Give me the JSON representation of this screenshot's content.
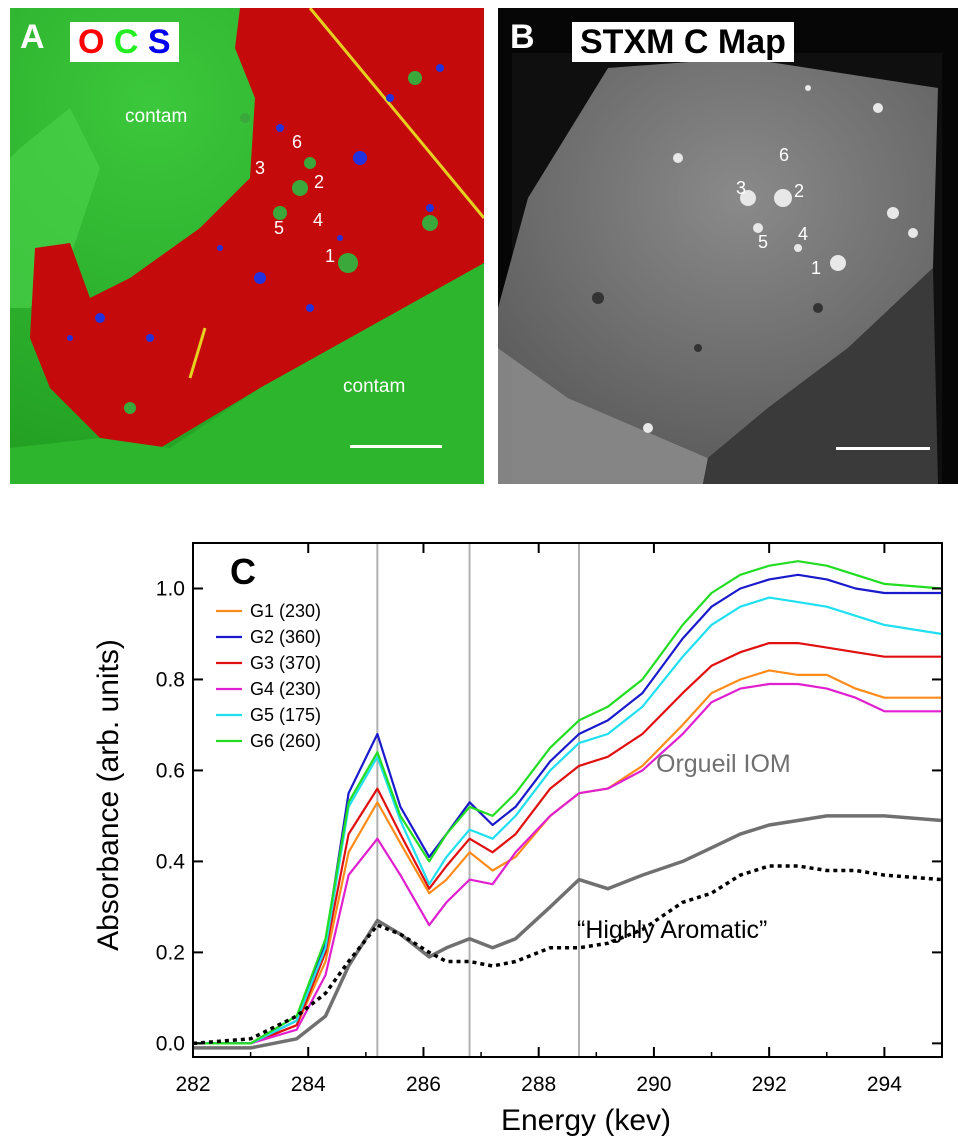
{
  "panel_a": {
    "letter": "A",
    "element_labels": [
      {
        "text": "O",
        "color": "#ff0000"
      },
      {
        "text": "C",
        "color": "#22ee22"
      },
      {
        "text": "S",
        "color": "#0000ee"
      }
    ],
    "region_labels": [
      "contam",
      "contam"
    ],
    "grain_labels": [
      "1",
      "2",
      "3",
      "4",
      "5",
      "6"
    ]
  },
  "panel_b": {
    "letter": "B",
    "title": "STXM C Map",
    "grain_labels": [
      "1",
      "2",
      "3",
      "4",
      "5",
      "6"
    ]
  },
  "chart_data": {
    "type": "line",
    "panel_letter": "C",
    "xlabel": "Energy (kev)",
    "ylabel": "Absorbance (arb. units)",
    "xlim": [
      282,
      295
    ],
    "ylim": [
      -0.03,
      1.1
    ],
    "xticks": [
      282,
      284,
      286,
      288,
      290,
      292,
      294
    ],
    "yticks": [
      0.0,
      0.2,
      0.4,
      0.6,
      0.8,
      1.0
    ],
    "ytick_labels": [
      "0.0",
      "0.2",
      "0.4",
      "0.6",
      "0.8",
      "1.0"
    ],
    "vertical_lines": [
      285.2,
      286.8,
      288.7
    ],
    "legend_position": "top-left",
    "series": [
      {
        "name": "G1 (230)",
        "color": "#ff8c1a",
        "x": [
          282,
          283,
          283.8,
          284.3,
          284.7,
          285.2,
          285.6,
          286.1,
          286.4,
          286.8,
          287.2,
          287.6,
          288.2,
          288.7,
          289.2,
          289.8,
          290.5,
          291,
          291.5,
          292,
          292.5,
          293,
          293.5,
          294,
          295
        ],
        "y": [
          0.0,
          0.0,
          0.04,
          0.18,
          0.42,
          0.53,
          0.44,
          0.33,
          0.36,
          0.42,
          0.38,
          0.41,
          0.5,
          0.55,
          0.56,
          0.61,
          0.7,
          0.77,
          0.8,
          0.82,
          0.81,
          0.81,
          0.78,
          0.76,
          0.76
        ]
      },
      {
        "name": "G2 (360)",
        "color": "#1a1acc",
        "x": [
          282,
          283,
          283.8,
          284.3,
          284.7,
          285.2,
          285.6,
          286.1,
          286.4,
          286.8,
          287.2,
          287.6,
          288.2,
          288.7,
          289.2,
          289.8,
          290.5,
          291,
          291.5,
          292,
          292.5,
          293,
          293.5,
          294,
          295
        ],
        "y": [
          0.0,
          0.0,
          0.05,
          0.22,
          0.55,
          0.68,
          0.52,
          0.41,
          0.46,
          0.53,
          0.48,
          0.52,
          0.62,
          0.68,
          0.71,
          0.77,
          0.89,
          0.96,
          1.0,
          1.02,
          1.03,
          1.02,
          1.0,
          0.99,
          0.99
        ]
      },
      {
        "name": "G3 (370)",
        "color": "#e01010",
        "x": [
          282,
          283,
          283.8,
          284.3,
          284.7,
          285.2,
          285.6,
          286.1,
          286.4,
          286.8,
          287.2,
          287.6,
          288.2,
          288.7,
          289.2,
          289.8,
          290.5,
          291,
          291.5,
          292,
          292.5,
          293,
          293.5,
          294,
          295
        ],
        "y": [
          0.0,
          0.0,
          0.04,
          0.2,
          0.46,
          0.56,
          0.46,
          0.34,
          0.39,
          0.45,
          0.42,
          0.46,
          0.56,
          0.61,
          0.63,
          0.68,
          0.77,
          0.83,
          0.86,
          0.88,
          0.88,
          0.87,
          0.86,
          0.85,
          0.85
        ]
      },
      {
        "name": "G4 (230)",
        "color": "#e020d0",
        "x": [
          282,
          283,
          283.8,
          284.3,
          284.7,
          285.2,
          285.6,
          286.1,
          286.4,
          286.8,
          287.2,
          287.6,
          288.2,
          288.7,
          289.2,
          289.8,
          290.5,
          291,
          291.5,
          292,
          292.5,
          293,
          293.5,
          294,
          295
        ],
        "y": [
          0.0,
          0.0,
          0.03,
          0.15,
          0.37,
          0.45,
          0.37,
          0.26,
          0.31,
          0.36,
          0.35,
          0.42,
          0.5,
          0.55,
          0.56,
          0.6,
          0.68,
          0.75,
          0.78,
          0.79,
          0.79,
          0.78,
          0.76,
          0.73,
          0.73
        ]
      },
      {
        "name": "G5 (175)",
        "color": "#20e0f0",
        "x": [
          282,
          283,
          283.8,
          284.3,
          284.7,
          285.2,
          285.6,
          286.1,
          286.4,
          286.8,
          287.2,
          287.6,
          288.2,
          288.7,
          289.2,
          289.8,
          290.5,
          291,
          291.5,
          292,
          292.5,
          293,
          293.5,
          294,
          295
        ],
        "y": [
          0.0,
          0.0,
          0.05,
          0.21,
          0.52,
          0.63,
          0.49,
          0.35,
          0.41,
          0.47,
          0.45,
          0.5,
          0.6,
          0.66,
          0.68,
          0.74,
          0.85,
          0.92,
          0.96,
          0.98,
          0.97,
          0.96,
          0.94,
          0.92,
          0.9
        ]
      },
      {
        "name": "G6 (260)",
        "color": "#22dd22",
        "x": [
          282,
          283,
          283.8,
          284.3,
          284.7,
          285.2,
          285.6,
          286.1,
          286.4,
          286.8,
          287.2,
          287.6,
          288.2,
          288.7,
          289.2,
          289.8,
          290.5,
          291,
          291.5,
          292,
          292.5,
          293,
          293.5,
          294,
          295
        ],
        "y": [
          0.0,
          0.0,
          0.06,
          0.23,
          0.53,
          0.64,
          0.5,
          0.4,
          0.46,
          0.52,
          0.5,
          0.55,
          0.65,
          0.71,
          0.74,
          0.8,
          0.92,
          0.99,
          1.03,
          1.05,
          1.06,
          1.05,
          1.03,
          1.01,
          1.0
        ]
      },
      {
        "name": "Orgueil IOM",
        "color": "#707070",
        "dashed": false,
        "x": [
          282,
          283,
          283.8,
          284.3,
          284.7,
          285.2,
          285.6,
          286.1,
          286.4,
          286.8,
          287.2,
          287.6,
          288.2,
          288.7,
          289.2,
          289.8,
          290.5,
          291,
          291.5,
          292,
          292.5,
          293,
          293.5,
          294,
          295
        ],
        "y": [
          -0.01,
          -0.01,
          0.01,
          0.06,
          0.17,
          0.27,
          0.24,
          0.19,
          0.21,
          0.23,
          0.21,
          0.23,
          0.3,
          0.36,
          0.34,
          0.37,
          0.4,
          0.43,
          0.46,
          0.48,
          0.49,
          0.5,
          0.5,
          0.5,
          0.49
        ]
      },
      {
        "name": "“Highly Aromatic”",
        "color": "#000000",
        "dashed": true,
        "x": [
          282,
          283,
          283.8,
          284.3,
          284.7,
          285.2,
          285.6,
          286.1,
          286.4,
          286.8,
          287.2,
          287.6,
          288.2,
          288.7,
          289.2,
          289.8,
          290.5,
          291,
          291.5,
          292,
          292.5,
          293,
          293.5,
          294,
          295
        ],
        "y": [
          0.0,
          0.01,
          0.06,
          0.11,
          0.18,
          0.26,
          0.24,
          0.2,
          0.18,
          0.18,
          0.17,
          0.18,
          0.21,
          0.21,
          0.22,
          0.25,
          0.31,
          0.33,
          0.37,
          0.39,
          0.39,
          0.38,
          0.38,
          0.37,
          0.36
        ]
      }
    ],
    "annotations": [
      "Orgueil IOM",
      "“Highly Aromatic”"
    ]
  }
}
